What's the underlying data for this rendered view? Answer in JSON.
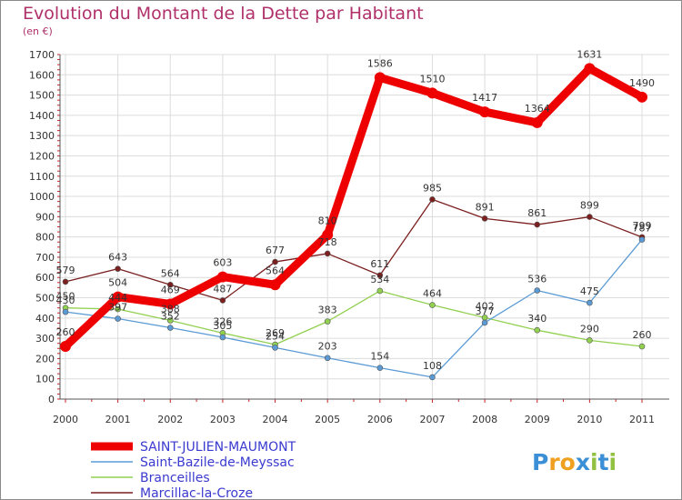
{
  "chart_data": {
    "type": "line",
    "title": "Evolution du Montant de la Dette par Habitant",
    "subtitle": "(en €)",
    "x": [
      "2000",
      "2001",
      "2002",
      "2003",
      "2004",
      "2005",
      "2006",
      "2007",
      "2008",
      "2009",
      "2010",
      "2011"
    ],
    "yticks": [
      "0",
      "100",
      "200",
      "300",
      "400",
      "500",
      "600",
      "700",
      "800",
      "900",
      "1000",
      "1100",
      "1200",
      "1300",
      "1400",
      "1500",
      "1600",
      "1700"
    ],
    "ylim": [
      0,
      1700
    ],
    "grid": true,
    "legend_position": "bottom-left",
    "series": [
      {
        "name": "SAINT-JULIEN-MAUMONT",
        "color": "#ee0000",
        "values": [
          260,
          504,
          469,
          603,
          564,
          810,
          1586,
          1510,
          1417,
          1364,
          1631,
          1490
        ]
      },
      {
        "name": "Saint-Bazile-de-Meyssac",
        "color": "#5b9bd5",
        "values": [
          430,
          397,
          352,
          305,
          254,
          203,
          154,
          108,
          377,
          536,
          475,
          787
        ]
      },
      {
        "name": "Branceilles",
        "color": "#92d050",
        "values": [
          450,
          444,
          388,
          326,
          269,
          383,
          534,
          464,
          402,
          340,
          290,
          260
        ]
      },
      {
        "name": "Marcillac-la-Croze",
        "color": "#7b1f1f",
        "values": [
          579,
          643,
          564,
          487,
          677,
          718,
          611,
          985,
          891,
          861,
          899,
          799
        ]
      }
    ],
    "labels": [
      [
        "260",
        "504",
        "469",
        "603",
        "564",
        "810",
        "1586",
        "1510",
        "1417",
        "1364",
        "1631",
        "1490"
      ],
      [
        "430",
        "397",
        "352",
        "305",
        "254",
        "203",
        "154",
        "108",
        "377",
        "536",
        "475",
        "787"
      ],
      [
        "450",
        "444",
        "388",
        "326",
        "269",
        "383",
        "534",
        "464",
        "402",
        "340",
        "290",
        "260"
      ],
      [
        "579",
        "643",
        "564",
        "487",
        "677",
        "718",
        "611",
        "985",
        "891",
        "861",
        "899",
        "799"
      ]
    ]
  },
  "logo": {
    "text": "Proxiti",
    "letters": [
      "P",
      "r",
      "o",
      "x",
      "i",
      "t",
      "i"
    ],
    "colors": [
      "#3a8fd6",
      "#f0a020",
      "#f0a020",
      "#3a8fd6",
      "#92c040",
      "#3a8fd6",
      "#92c040"
    ]
  }
}
